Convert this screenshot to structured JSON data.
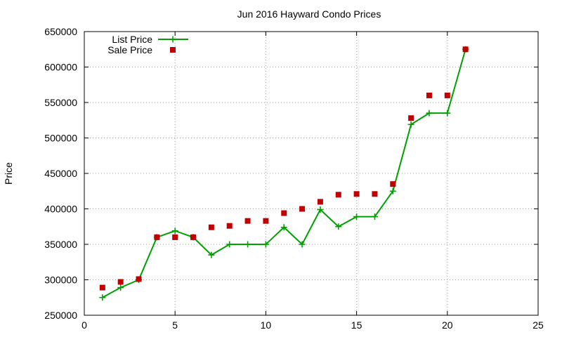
{
  "chart_data": {
    "type": "line",
    "title": "Jun 2016 Hayward Condo Prices",
    "xlabel": "",
    "ylabel": "Price",
    "xlim": [
      0,
      25
    ],
    "ylim": [
      250000,
      650000
    ],
    "xticks": [
      0,
      5,
      10,
      15,
      20,
      25
    ],
    "yticks": [
      250000,
      300000,
      350000,
      400000,
      450000,
      500000,
      550000,
      600000,
      650000
    ],
    "grid": true,
    "legend_position": "top-left",
    "series": [
      {
        "name": "List Price",
        "style": "line-with-plus-markers",
        "color": "#00a000",
        "points": [
          [
            1,
            275000
          ],
          [
            2,
            289000
          ],
          [
            3,
            300000
          ],
          [
            4,
            360000
          ],
          [
            5,
            369000
          ],
          [
            6,
            360000
          ],
          [
            7,
            335000
          ],
          [
            8,
            350000
          ],
          [
            9,
            350000
          ],
          [
            10,
            350000
          ],
          [
            11,
            374000
          ],
          [
            12,
            350000
          ],
          [
            13,
            399000
          ],
          [
            14,
            375000
          ],
          [
            15,
            389000
          ],
          [
            16,
            389000
          ],
          [
            17,
            425000
          ],
          [
            18,
            519000
          ],
          [
            19,
            535000
          ],
          [
            20,
            535000
          ],
          [
            21,
            625000
          ]
        ]
      },
      {
        "name": "Sale Price",
        "style": "square-markers",
        "color": "#c00000",
        "points": [
          [
            1,
            289000
          ],
          [
            2,
            297000
          ],
          [
            3,
            301000
          ],
          [
            4,
            360000
          ],
          [
            5,
            360000
          ],
          [
            6,
            360000
          ],
          [
            7,
            374000
          ],
          [
            8,
            376000
          ],
          [
            9,
            383000
          ],
          [
            10,
            383000
          ],
          [
            11,
            394000
          ],
          [
            12,
            400000
          ],
          [
            13,
            410000
          ],
          [
            14,
            420000
          ],
          [
            15,
            421000
          ],
          [
            16,
            421000
          ],
          [
            17,
            435000
          ],
          [
            18,
            528000
          ],
          [
            19,
            560000
          ],
          [
            20,
            560000
          ],
          [
            21,
            625000
          ]
        ]
      }
    ]
  }
}
